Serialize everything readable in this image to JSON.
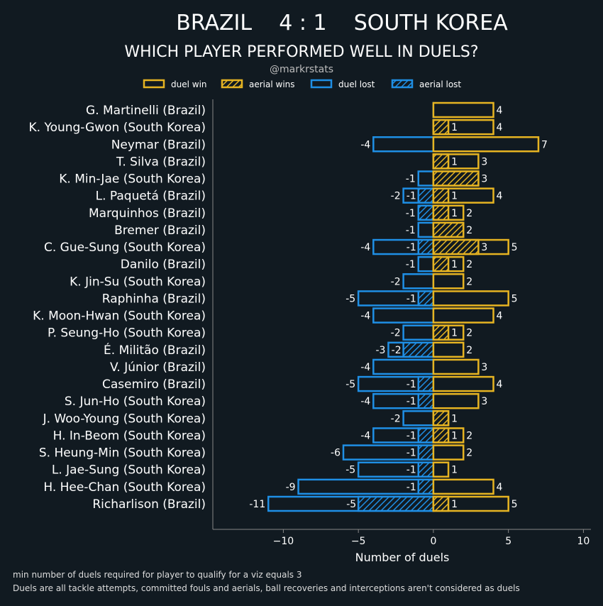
{
  "header": {
    "title": "BRAZIL    4 : 1    SOUTH KOREA",
    "subtitle": "WHICH PLAYER PERFORMED WELL IN DUELS?",
    "author": "@markrstats"
  },
  "colors": {
    "background": "#111a21",
    "win": "#e6b422",
    "lost": "#1f8fe5",
    "text": "#ffffff",
    "muted": "#c8c8c8"
  },
  "footer": {
    "note1": "min number of duels required for player to qualify for a viz equals 3",
    "note2": "Duels are all tackle attempts, committed fouls and aerials, ball recoveries and interceptions aren't considered as duels"
  },
  "chart_data": {
    "type": "bar",
    "orientation": "horizontal",
    "xlabel": "Number of duels",
    "xlim": [
      -14.7,
      10.5
    ],
    "xticks": [
      -10,
      -5,
      0,
      5,
      10
    ],
    "xtick_labels": [
      "−10",
      "−5",
      "0",
      "5",
      "10"
    ],
    "grid": false,
    "legend_placement": "top-center",
    "legend": [
      "duel win",
      "aerial wins",
      "duel lost",
      "aerial lost"
    ],
    "categories": [
      "G. Martinelli (Brazil)",
      "K. Young-Gwon (South Korea)",
      "Neymar (Brazil)",
      "T. Silva (Brazil)",
      "K. Min-Jae (South Korea)",
      "L. Paquetá (Brazil)",
      "Marquinhos (Brazil)",
      "Bremer (Brazil)",
      "C. Gue-Sung (South Korea)",
      "Danilo (Brazil)",
      "K. Jin-Su (South Korea)",
      "Raphinha (Brazil)",
      "K. Moon-Hwan (South Korea)",
      "P. Seung-Ho (South Korea)",
      "É. Militão (Brazil)",
      "V. Júnior (Brazil)",
      "Casemiro (Brazil)",
      "S. Jun-Ho (South Korea)",
      "J. Woo-Young (South Korea)",
      "H. In-Beom (South Korea)",
      "S. Heung-Min (South Korea)",
      "L. Jae-Sung (South Korea)",
      "H. Hee-Chan (South Korea)",
      "Richarlison (Brazil)"
    ],
    "series": [
      {
        "name": "duel win",
        "values": [
          4,
          4,
          7,
          3,
          3,
          4,
          2,
          2,
          5,
          2,
          2,
          5,
          4,
          2,
          2,
          3,
          4,
          3,
          1,
          2,
          2,
          1,
          4,
          5
        ]
      },
      {
        "name": "aerial wins",
        "values": [
          0,
          1,
          0,
          1,
          3,
          1,
          1,
          2,
          3,
          1,
          0,
          0,
          0,
          1,
          0,
          0,
          0,
          0,
          1,
          1,
          0,
          0,
          0,
          1
        ]
      },
      {
        "name": "duel lost",
        "values": [
          0,
          0,
          -4,
          0,
          -1,
          -2,
          -1,
          -1,
          -4,
          -1,
          -2,
          -5,
          -4,
          -2,
          -3,
          -4,
          -5,
          -4,
          -2,
          -4,
          -6,
          -5,
          -9,
          -11
        ]
      },
      {
        "name": "aerial lost",
        "values": [
          0,
          0,
          0,
          0,
          0,
          -1,
          -1,
          0,
          -1,
          0,
          0,
          -1,
          0,
          0,
          -2,
          0,
          -1,
          -1,
          0,
          -1,
          -1,
          -1,
          -1,
          -5
        ]
      }
    ]
  }
}
